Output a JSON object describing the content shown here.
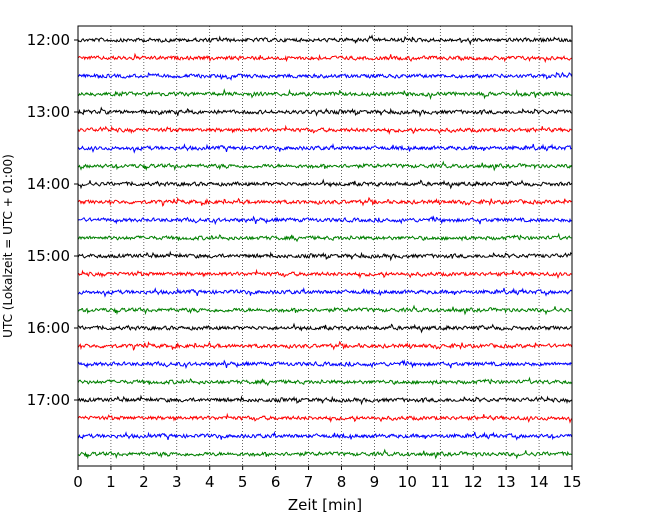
{
  "chart_data": {
    "type": "line",
    "title": "",
    "xlabel": "Zeit  [min]",
    "ylabel": "UTC (Lokalzeit = UTC + 01:00)",
    "xlim": [
      0,
      15
    ],
    "x_ticks": [
      "0",
      "1",
      "2",
      "3",
      "4",
      "5",
      "6",
      "7",
      "8",
      "9",
      "10",
      "11",
      "12",
      "13",
      "14",
      "15"
    ],
    "y_ticks": [
      "12:00",
      "13:00",
      "14:00",
      "15:00",
      "16:00",
      "17:00"
    ],
    "grid": "vertical dotted",
    "trace_start": "12:00",
    "trace_interval_min": 15,
    "trace_count": 24,
    "colors": [
      "#000000",
      "#ff0000",
      "#0000ff",
      "#008000"
    ],
    "amplitude_note": "seismic noise traces, small random amplitude"
  }
}
